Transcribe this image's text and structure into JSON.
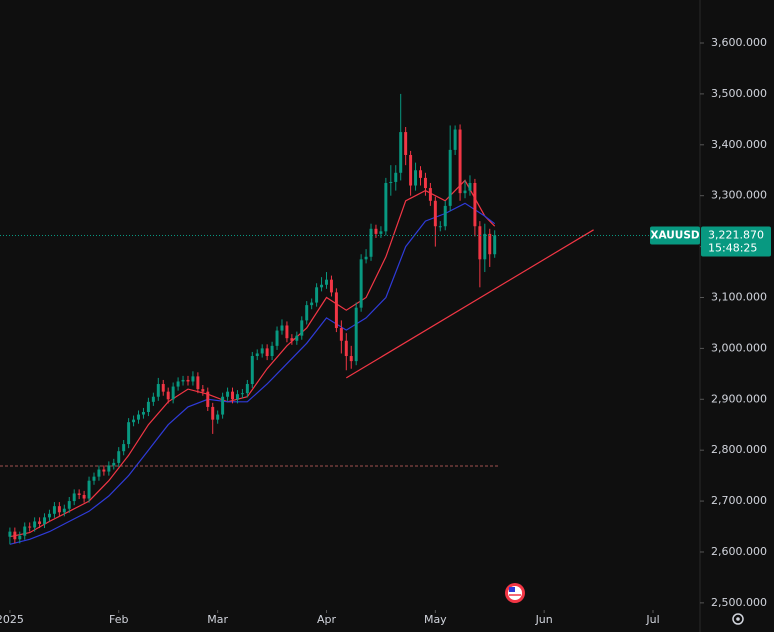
{
  "chart_data": {
    "type": "candlestick",
    "x": [
      0,
      1,
      2,
      3,
      4,
      5,
      6,
      7,
      8,
      9,
      10,
      11,
      12,
      13,
      14,
      15,
      16,
      17,
      18,
      19,
      20,
      21,
      22,
      23,
      24,
      25,
      26,
      27,
      28,
      29,
      30,
      31,
      32,
      33,
      34,
      35,
      36,
      37,
      38,
      39,
      40,
      41,
      42,
      43,
      44,
      45,
      46,
      47,
      48,
      49,
      50,
      51,
      52,
      53,
      54,
      55,
      56,
      57,
      58,
      59,
      60,
      61,
      62,
      63,
      64,
      65,
      66,
      67,
      68,
      69,
      70,
      71,
      72,
      73,
      74,
      75,
      76,
      77,
      78,
      79,
      80,
      81,
      82,
      83,
      84,
      85,
      86,
      87,
      88,
      89,
      90,
      91,
      92,
      93,
      94,
      95,
      96,
      97,
      98
    ],
    "open": [
      2630,
      2640,
      2625,
      2632,
      2650,
      2648,
      2660,
      2655,
      2668,
      2675,
      2690,
      2678,
      2685,
      2700,
      2715,
      2712,
      2705,
      2740,
      2748,
      2762,
      2758,
      2770,
      2775,
      2798,
      2812,
      2855,
      2860,
      2870,
      2875,
      2895,
      2905,
      2930,
      2915,
      2900,
      2925,
      2935,
      2938,
      2935,
      2945,
      2920,
      2915,
      2885,
      2860,
      2870,
      2905,
      2915,
      2900,
      2910,
      2912,
      2930,
      2985,
      2990,
      3000,
      2985,
      3005,
      3035,
      3045,
      3020,
      3015,
      3025,
      3055,
      3085,
      3090,
      3120,
      3125,
      3135,
      3110,
      3040,
      3015,
      2985,
      2975,
      3080,
      3175,
      3180,
      3235,
      3225,
      3230,
      3325,
      3327,
      3345,
      3425,
      3380,
      3320,
      3350,
      3335,
      3315,
      3290,
      3240,
      3240,
      3280,
      3390,
      3430,
      3305,
      3310,
      3325,
      3240,
      3175,
      3225,
      3185
    ],
    "high": [
      2648,
      2648,
      2640,
      2658,
      2658,
      2668,
      2668,
      2676,
      2683,
      2698,
      2698,
      2693,
      2708,
      2723,
      2723,
      2720,
      2748,
      2756,
      2770,
      2770,
      2778,
      2783,
      2806,
      2820,
      2863,
      2868,
      2878,
      2883,
      2903,
      2913,
      2942,
      2938,
      2923,
      2933,
      2943,
      2946,
      2946,
      2955,
      2953,
      2928,
      2923,
      2893,
      2878,
      2913,
      2923,
      2923,
      2918,
      2920,
      2938,
      2993,
      2998,
      3008,
      3008,
      3013,
      3043,
      3057,
      3053,
      3028,
      3033,
      3063,
      3093,
      3098,
      3128,
      3140,
      3150,
      3143,
      3118,
      3055,
      3030,
      3005,
      3090,
      3185,
      3195,
      3245,
      3243,
      3240,
      3335,
      3360,
      3360,
      3500,
      3435,
      3388,
      3365,
      3358,
      3345,
      3325,
      3298,
      3250,
      3290,
      3438,
      3438,
      3440,
      3330,
      3340,
      3333,
      3250,
      3245,
      3235,
      3232
    ],
    "low": [
      2615,
      2617,
      2617,
      2624,
      2640,
      2640,
      2647,
      2647,
      2660,
      2667,
      2670,
      2670,
      2677,
      2692,
      2704,
      2697,
      2697,
      2732,
      2740,
      2750,
      2750,
      2762,
      2767,
      2790,
      2804,
      2847,
      2852,
      2862,
      2867,
      2887,
      2897,
      2907,
      2892,
      2892,
      2917,
      2927,
      2927,
      2927,
      2912,
      2907,
      2877,
      2832,
      2852,
      2862,
      2897,
      2892,
      2892,
      2902,
      2904,
      2922,
      2977,
      2982,
      2977,
      2977,
      2997,
      3027,
      3012,
      3007,
      3007,
      3017,
      3047,
      3077,
      3082,
      3112,
      3117,
      3102,
      3032,
      2990,
      2957,
      2960,
      2967,
      3072,
      3167,
      3172,
      3217,
      3217,
      3222,
      3300,
      3310,
      3330,
      3360,
      3300,
      3310,
      3320,
      3300,
      3280,
      3200,
      3230,
      3232,
      3270,
      3380,
      3290,
      3295,
      3300,
      3220,
      3120,
      3150,
      3160,
      3178
    ],
    "close": [
      2640,
      2625,
      2632,
      2650,
      2648,
      2660,
      2655,
      2668,
      2675,
      2690,
      2678,
      2685,
      2700,
      2715,
      2712,
      2705,
      2740,
      2748,
      2762,
      2758,
      2770,
      2775,
      2798,
      2812,
      2855,
      2860,
      2870,
      2875,
      2895,
      2905,
      2930,
      2915,
      2900,
      2925,
      2935,
      2938,
      2935,
      2945,
      2920,
      2915,
      2885,
      2860,
      2870,
      2905,
      2915,
      2900,
      2910,
      2912,
      2930,
      2985,
      2990,
      3000,
      2985,
      3005,
      3035,
      3045,
      3020,
      3015,
      3025,
      3055,
      3085,
      3090,
      3120,
      3125,
      3135,
      3110,
      3040,
      3015,
      2985,
      2975,
      3080,
      3175,
      3180,
      3235,
      3225,
      3230,
      3325,
      3327,
      3345,
      3425,
      3380,
      3320,
      3350,
      3335,
      3315,
      3290,
      3240,
      3240,
      3280,
      3390,
      3430,
      3305,
      3310,
      3325,
      3240,
      3175,
      3225,
      3185,
      3222
    ],
    "up_color": "#089981",
    "down_color": "#f23645",
    "lines": [
      {
        "color": "#f23645",
        "x": [
          0,
          4,
          8,
          12,
          16,
          20,
          24,
          28,
          32,
          36,
          40,
          44,
          48,
          52,
          56,
          60,
          64,
          68,
          72,
          76,
          80,
          84,
          88,
          92,
          96,
          98
        ],
        "values": [
          2630,
          2638,
          2660,
          2680,
          2700,
          2740,
          2790,
          2850,
          2895,
          2920,
          2910,
          2895,
          2905,
          2960,
          3005,
          3040,
          3100,
          3075,
          3100,
          3180,
          3290,
          3310,
          3290,
          3330,
          3260,
          3240
        ]
      },
      {
        "color": "#2f3bd8",
        "x": [
          0,
          4,
          8,
          12,
          16,
          20,
          24,
          28,
          32,
          36,
          40,
          44,
          48,
          52,
          56,
          60,
          64,
          68,
          72,
          76,
          80,
          84,
          88,
          92,
          96,
          98
        ],
        "values": [
          2615,
          2625,
          2640,
          2660,
          2680,
          2710,
          2750,
          2800,
          2850,
          2885,
          2900,
          2895,
          2895,
          2930,
          2970,
          3010,
          3060,
          3036,
          3060,
          3100,
          3200,
          3250,
          3265,
          3285,
          3260,
          3245
        ]
      }
    ],
    "trend_line": {
      "color": "#f23645",
      "x": [
        68,
        118
      ],
      "values": [
        2942,
        3233
      ]
    },
    "level_line": {
      "value": 2769,
      "color": "#a0524f"
    },
    "symbol": "XAUUSD",
    "last_price": {
      "value": 3221.87,
      "label": "3,221.870"
    },
    "countdown": "15:48:25",
    "price_color": "#089981",
    "xlim": [
      -2,
      139.5
    ],
    "ylim": [
      2486,
      3684.5
    ],
    "xticks": [
      {
        "value": 0,
        "label": "2025"
      },
      {
        "value": 22,
        "label": "Feb"
      },
      {
        "value": 42,
        "label": "Mar"
      },
      {
        "value": 64,
        "label": "Apr"
      },
      {
        "value": 86,
        "label": "May"
      },
      {
        "value": 108,
        "label": "Jun"
      },
      {
        "value": 130,
        "label": "Jul"
      }
    ],
    "yticks": [
      {
        "value": 2500,
        "label": "2,500.000"
      },
      {
        "value": 2600,
        "label": "2,600.000"
      },
      {
        "value": 2700,
        "label": "2,700.000"
      },
      {
        "value": 2800,
        "label": "2,800.000"
      },
      {
        "value": 2900,
        "label": "2,900.000"
      },
      {
        "value": 3000,
        "label": "3,000.000"
      },
      {
        "value": 3100,
        "label": "3,100.000"
      },
      {
        "value": 3200,
        "label": "3,200.000"
      },
      {
        "value": 3300,
        "label": "3,300.000"
      },
      {
        "value": 3400,
        "label": "3,400.000"
      },
      {
        "value": 3500,
        "label": "3,500.000"
      },
      {
        "value": 3600,
        "label": "3,600.000"
      }
    ],
    "grid": false
  }
}
